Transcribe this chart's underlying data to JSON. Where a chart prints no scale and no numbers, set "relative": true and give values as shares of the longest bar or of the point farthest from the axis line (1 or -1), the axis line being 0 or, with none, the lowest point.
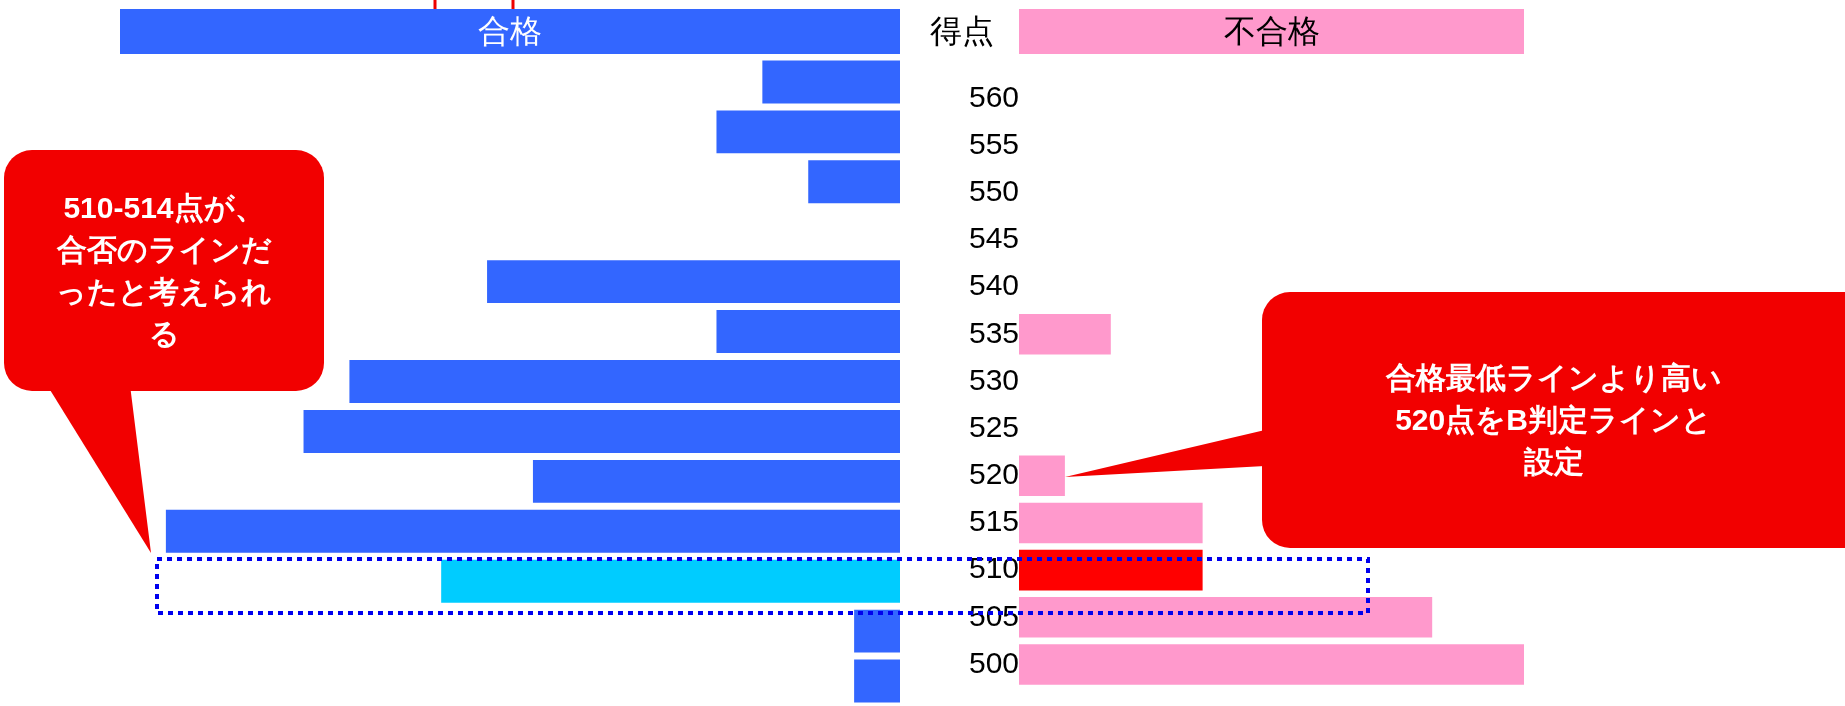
{
  "chart_data": [
    {
      "type": "bar",
      "orientation": "horizontal",
      "relative": true,
      "legend": "top",
      "tick_labels": false,
      "grid": false,
      "categories": [
        "560",
        "555",
        "550",
        "545",
        "540",
        "535",
        "530",
        "525",
        "520",
        "515",
        "510",
        "505",
        "500"
      ],
      "series": [
        {
          "name": "合格",
          "color": "#3366ff",
          "colors": [
            "#3366ff",
            "#3366ff",
            "#3366ff",
            "#3366ff",
            "#3366ff",
            "#3366ff",
            "#3366ff",
            "#3366ff",
            "#3366ff",
            "#3366ff",
            "#00ccff",
            "#3366ff",
            "#3366ff"
          ],
          "values": [
            -0.1875,
            -0.25,
            -0.125,
            0,
            -0.5625,
            -0.25,
            -0.75,
            -0.8125,
            -0.5,
            -1,
            -0.625,
            -0.0625,
            -0.0625
          ]
        }
      ],
      "annotations": [
        "510-514点が、合否のラインだったと考えられる"
      ]
    },
    {
      "type": "bar",
      "orientation": "horizontal",
      "relative": true,
      "ylabel": "得点",
      "legend": "top",
      "tick_labels": "y",
      "grid": false,
      "categories": [
        "560",
        "555",
        "550",
        "545",
        "540",
        "535",
        "530",
        "525",
        "520",
        "515",
        "510",
        "505",
        "500"
      ],
      "series": [
        {
          "name": "不合格",
          "color": "#ff99cc",
          "colors": [
            "#ff99cc",
            "#ff99cc",
            "#ff99cc",
            "#ff99cc",
            "#ff99cc",
            "#ff99cc",
            "#ff99cc",
            "#ff99cc",
            "#ff99cc",
            "#ff99cc",
            "#ff0000",
            "#ff99cc",
            "#ff99cc"
          ],
          "values": [
            0,
            0,
            0,
            0,
            0,
            0.1818,
            0,
            0,
            0.0909,
            0.3636,
            0.3636,
            0.8182,
            1
          ]
        }
      ],
      "annotations": [
        "合格最低ラインより高い520点をB判定ラインと設定"
      ]
    }
  ]
}
